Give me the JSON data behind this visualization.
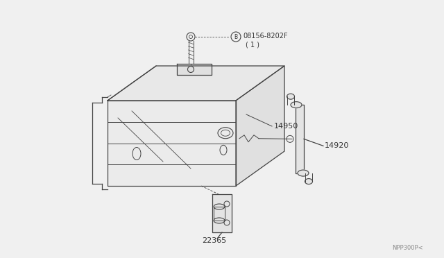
{
  "background_color": "#f0f0f0",
  "watermark": "NPP300P<",
  "parts": {
    "bolt_label": "08156-8202F",
    "bolt_sub": "( 1 )",
    "bolt_circle_label": "B",
    "part_14950": "14950",
    "part_14920": "14920",
    "part_22365": "22365"
  },
  "line_color": "#444444",
  "text_color": "#333333",
  "fig_w": 6.4,
  "fig_h": 3.72,
  "dpi": 100
}
